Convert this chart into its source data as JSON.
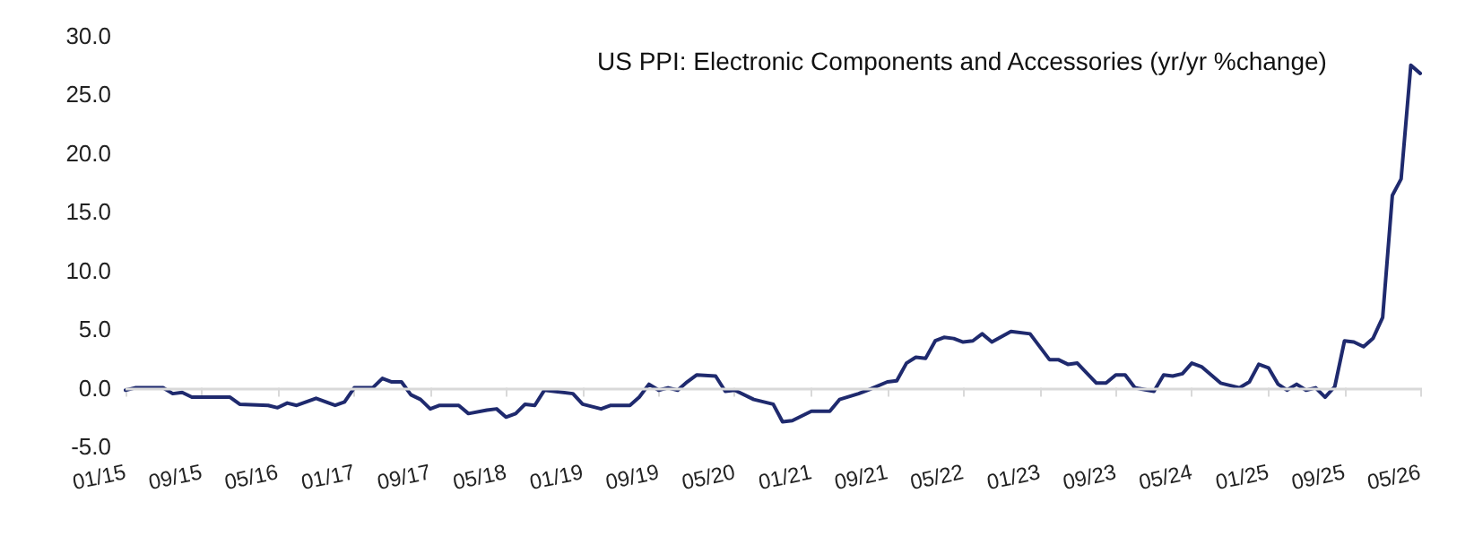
{
  "chart_data": {
    "type": "line",
    "title": "US PPI: Electronic Components and Accessories (yr/yr %change)",
    "x": [
      "2015-01",
      "2015-02",
      "2015-05",
      "2015-06",
      "2015-07",
      "2015-08",
      "2015-12",
      "2016-01",
      "2016-04",
      "2016-05",
      "2016-06",
      "2016-07",
      "2016-09",
      "2016-11",
      "2016-12",
      "2017-01",
      "2017-03",
      "2017-04",
      "2017-05",
      "2017-06",
      "2017-07",
      "2017-08",
      "2017-09",
      "2017-10",
      "2017-12",
      "2018-01",
      "2018-03",
      "2018-04",
      "2018-05",
      "2018-06",
      "2018-07",
      "2018-08",
      "2018-09",
      "2018-10",
      "2018-12",
      "2019-01",
      "2019-03",
      "2019-04",
      "2019-06",
      "2019-07",
      "2019-08",
      "2019-09",
      "2019-10",
      "2019-11",
      "2019-12",
      "2020-01",
      "2020-03",
      "2020-04",
      "2020-05",
      "2020-07",
      "2020-09",
      "2020-10",
      "2020-11",
      "2021-01",
      "2021-03",
      "2021-04",
      "2021-06",
      "2021-07",
      "2021-09",
      "2021-10",
      "2021-11",
      "2021-12",
      "2022-01",
      "2022-02",
      "2022-03",
      "2022-04",
      "2022-05",
      "2022-06",
      "2022-07",
      "2022-08",
      "2022-10",
      "2022-12",
      "2023-02",
      "2023-03",
      "2023-04",
      "2023-05",
      "2023-07",
      "2023-08",
      "2023-09",
      "2023-10",
      "2023-11",
      "2024-01",
      "2024-02",
      "2024-03",
      "2024-04",
      "2024-05",
      "2024-06",
      "2024-08",
      "2024-10",
      "2024-11",
      "2024-12",
      "2025-01",
      "2025-02",
      "2025-03",
      "2025-04",
      "2025-05",
      "2025-06",
      "2025-07",
      "2025-08",
      "2025-09",
      "2025-10",
      "2025-11",
      "2025-12",
      "2026-01",
      "2026-02",
      "2026-03",
      "2026-04",
      "2026-05"
    ],
    "series": [
      {
        "color": "#1f2a6e",
        "values": [
          -0.2,
          0.0,
          0.0,
          -0.5,
          -0.4,
          -0.8,
          -0.8,
          -1.4,
          -1.5,
          -1.7,
          -1.3,
          -1.5,
          -0.9,
          -1.5,
          -1.2,
          0.0,
          0.0,
          0.8,
          0.5,
          0.5,
          -0.6,
          -1.0,
          -1.8,
          -1.5,
          -1.5,
          -2.2,
          -1.9,
          -1.8,
          -2.5,
          -2.2,
          -1.4,
          -1.5,
          -0.2,
          -0.3,
          -0.5,
          -1.4,
          -1.8,
          -1.5,
          -1.5,
          -0.8,
          0.3,
          -0.2,
          0.0,
          -0.2,
          0.5,
          1.1,
          1.0,
          -0.3,
          -0.2,
          -1.0,
          -1.4,
          -2.9,
          -2.8,
          -2.0,
          -2.0,
          -1.0,
          -0.5,
          -0.2,
          0.5,
          0.6,
          2.1,
          2.6,
          2.5,
          4.0,
          4.3,
          4.2,
          3.9,
          4.0,
          4.6,
          3.9,
          4.8,
          4.6,
          2.4,
          2.4,
          2.0,
          2.1,
          0.4,
          0.4,
          1.1,
          1.1,
          0.0,
          -0.3,
          1.1,
          1.0,
          1.2,
          2.1,
          1.8,
          0.4,
          0.0,
          0.5,
          2.0,
          1.7,
          0.3,
          -0.2,
          0.3,
          -0.2,
          0.0,
          -0.8,
          0.1,
          4.0,
          3.9,
          3.5,
          4.2,
          6.0,
          16.4,
          17.8,
          27.5,
          26.8
        ]
      }
    ],
    "xlim": [
      "2015-01",
      "2026-05"
    ],
    "xticks": [
      {
        "value": "2015-01",
        "label": "01/15"
      },
      {
        "value": "2015-09",
        "label": "09/15"
      },
      {
        "value": "2016-05",
        "label": "05/16"
      },
      {
        "value": "2017-01",
        "label": "01/17"
      },
      {
        "value": "2017-09",
        "label": "09/17"
      },
      {
        "value": "2018-05",
        "label": "05/18"
      },
      {
        "value": "2019-01",
        "label": "01/19"
      },
      {
        "value": "2019-09",
        "label": "09/19"
      },
      {
        "value": "2020-05",
        "label": "05/20"
      },
      {
        "value": "2021-01",
        "label": "01/21"
      },
      {
        "value": "2021-09",
        "label": "09/21"
      },
      {
        "value": "2022-05",
        "label": "05/22"
      },
      {
        "value": "2023-01",
        "label": "01/23"
      },
      {
        "value": "2023-09",
        "label": "09/23"
      },
      {
        "value": "2024-05",
        "label": "05/24"
      },
      {
        "value": "2025-01",
        "label": "01/25"
      },
      {
        "value": "2025-09",
        "label": "09/25"
      },
      {
        "value": "2026-05",
        "label": "05/26"
      }
    ],
    "ylim": [
      -5,
      30
    ],
    "yticks": [
      {
        "value": -5,
        "label": "-5.0"
      },
      {
        "value": 0,
        "label": "0.0"
      },
      {
        "value": 5,
        "label": "5.0"
      },
      {
        "value": 10,
        "label": "10.0"
      },
      {
        "value": 15,
        "label": "15.0"
      },
      {
        "value": 20,
        "label": "20.0"
      },
      {
        "value": 25,
        "label": "25.0"
      },
      {
        "value": 30,
        "label": "30.0"
      }
    ],
    "ref_lines": [
      {
        "axis": "y",
        "value": 0,
        "color": "#d9d9d9"
      }
    ],
    "marker": "none",
    "line_style": "solid"
  }
}
